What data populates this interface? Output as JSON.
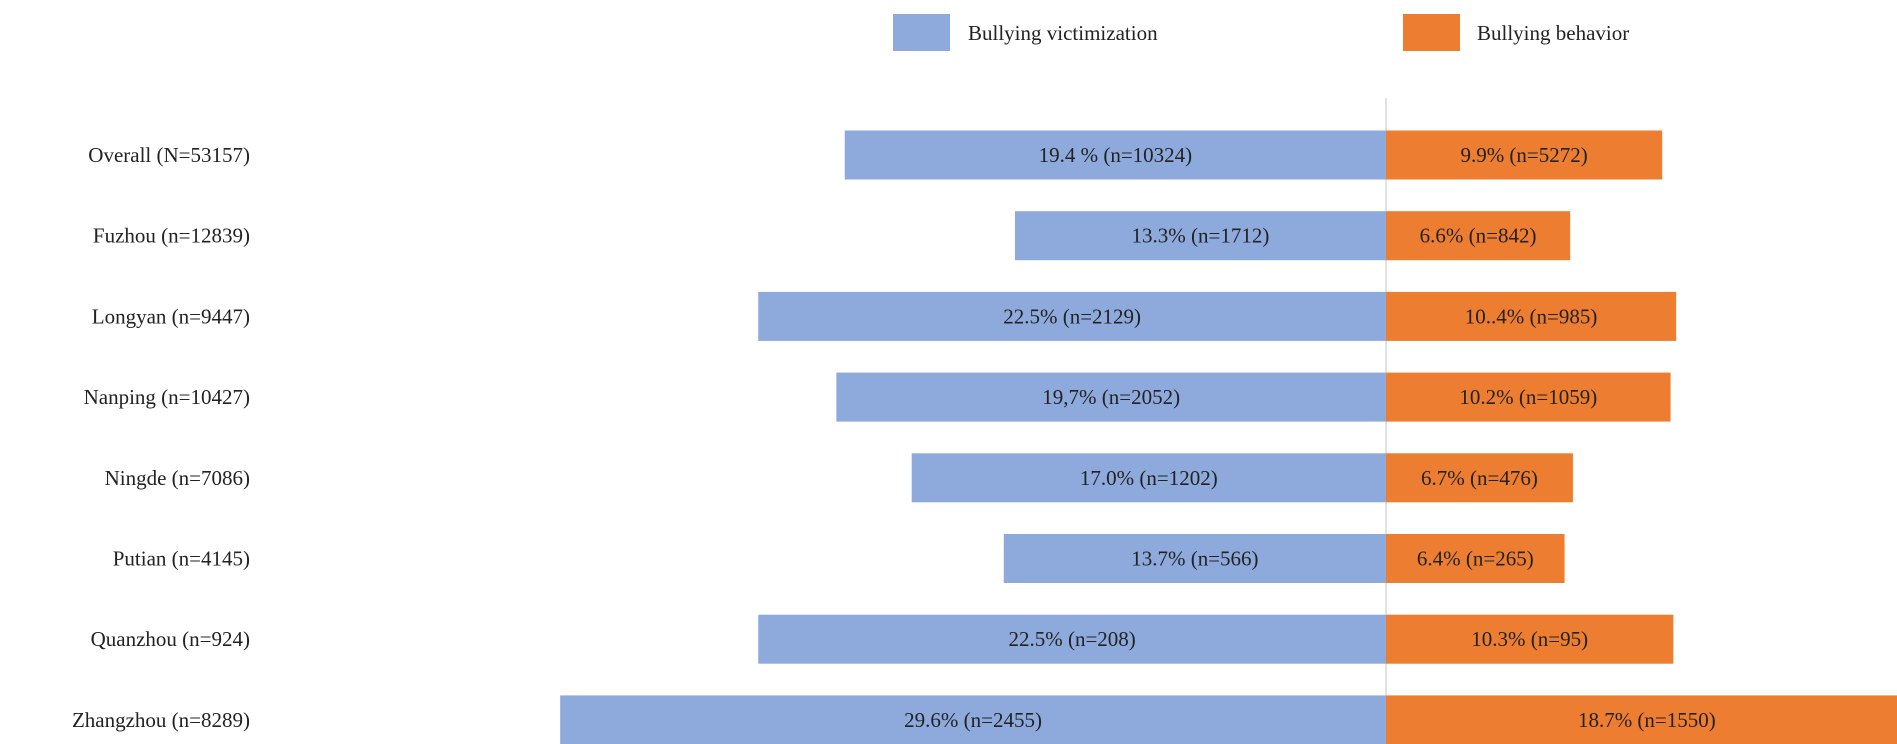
{
  "chart_data": {
    "type": "bar",
    "orientation": "horizontal-diverging",
    "categories": [
      "Overall (N=53157)",
      "Fuzhou (n=12839)",
      "Longyan (n=9447)",
      "Nanping (n=10427)",
      "Ningde (n=7086)",
      "Putian (n=4145)",
      "Quanzhou (n=924)",
      "Zhangzhou (n=8289)"
    ],
    "series": [
      {
        "name": "Bullying victimization",
        "color": "#8eaadc",
        "direction": "left",
        "values": [
          19.4,
          13.3,
          22.5,
          19.7,
          17.0,
          13.7,
          22.5,
          29.6
        ],
        "labels": [
          "19.4 % (n=10324)",
          "13.3% (n=1712)",
          "22.5% (n=2129)",
          "19,7% (n=2052)",
          "17.0% (n=1202)",
          "13.7% (n=566)",
          "22.5% (n=208)",
          "29.6% (n=2455)"
        ]
      },
      {
        "name": "Bullying behavior",
        "color": "#ed7d31",
        "direction": "right",
        "values": [
          9.9,
          6.6,
          10.4,
          10.2,
          6.7,
          6.4,
          10.3,
          18.7
        ],
        "labels": [
          "9.9% (n=5272)",
          "6.6% (n=842)",
          "10..4% (n=985)",
          "10.2% (n=1059)",
          "6.7% (n=476)",
          "6.4% (n=265)",
          "10.3% (n=95)",
          "18.7% (n=1550)"
        ]
      }
    ],
    "title": "",
    "xlabel": "",
    "ylabel": "",
    "legend_position": "top",
    "grid": false
  }
}
